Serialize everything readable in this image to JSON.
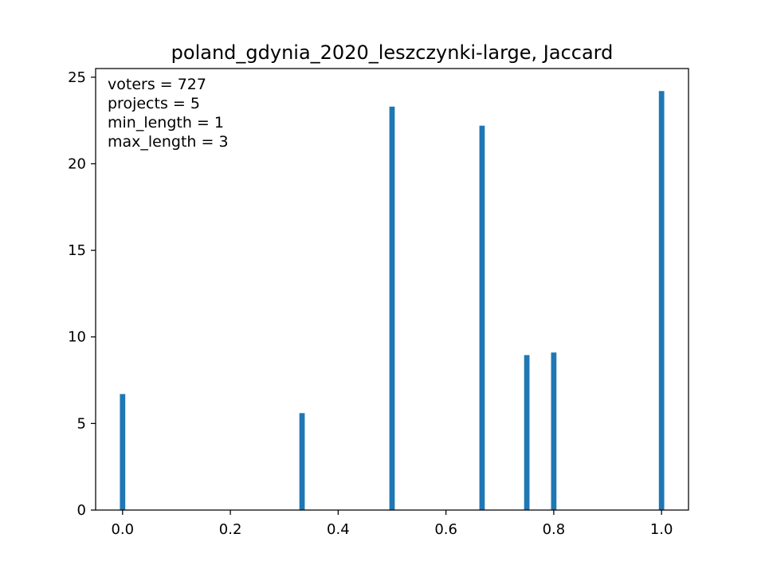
{
  "chart_data": {
    "type": "bar",
    "title": "poland_gdynia_2020_leszczynki-large, Jaccard",
    "xlabel": "",
    "ylabel": "",
    "xlim": [
      -0.05,
      1.05
    ],
    "ylim": [
      0,
      25.5
    ],
    "x_ticks": [
      0.0,
      0.2,
      0.4,
      0.6,
      0.8,
      1.0
    ],
    "x_tick_labels": [
      "0.0",
      "0.2",
      "0.4",
      "0.6",
      "0.8",
      "1.0"
    ],
    "y_ticks": [
      0,
      5,
      10,
      15,
      20,
      25
    ],
    "y_tick_labels": [
      "0",
      "5",
      "10",
      "15",
      "20",
      "25"
    ],
    "bar_width": 0.01,
    "grid": false,
    "color": "#1f77b4",
    "annotation": [
      "voters = 727",
      "projects = 5",
      "min_length = 1",
      "max_length = 3"
    ],
    "series": [
      {
        "x": [
          0.0,
          0.333,
          0.5,
          0.667,
          0.75,
          0.8,
          1.0
        ],
        "values": [
          6.7,
          5.6,
          23.3,
          22.2,
          8.95,
          9.1,
          24.2
        ]
      }
    ]
  }
}
